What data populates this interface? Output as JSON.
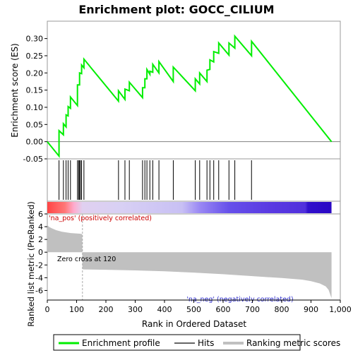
{
  "chart_data": {
    "type": "line",
    "title": "Enrichment plot: GOCC_CILIUM",
    "es_panel": {
      "ylabel": "Enrichment score (ES)",
      "ylim": [
        -0.05,
        0.33
      ],
      "yticks": [
        -0.05,
        0.0,
        0.05,
        0.1,
        0.15,
        0.2,
        0.25,
        0.3
      ],
      "ytick_labels": [
        "-0.05",
        "0.00",
        "0.05",
        "0.10",
        "0.15",
        "0.20",
        "0.25",
        "0.30"
      ],
      "series": [
        {
          "name": "Enrichment profile",
          "color": "#00ee00",
          "x": [
            0,
            40,
            40,
            55,
            55,
            64,
            64,
            71,
            71,
            79,
            79,
            103,
            103,
            110,
            110,
            117,
            117,
            125,
            125,
            243,
            243,
            265,
            265,
            280,
            280,
            325,
            325,
            333,
            333,
            340,
            340,
            350,
            350,
            360,
            360,
            381,
            381,
            430,
            430,
            505,
            505,
            520,
            520,
            545,
            545,
            555,
            555,
            568,
            568,
            585,
            585,
            620,
            620,
            640,
            640,
            697,
            697,
            970
          ],
          "y": [
            0.0,
            -0.042,
            0.032,
            0.02,
            0.052,
            0.043,
            0.078,
            0.075,
            0.102,
            0.097,
            0.13,
            0.105,
            0.165,
            0.165,
            0.2,
            0.198,
            0.223,
            0.215,
            0.24,
            0.118,
            0.148,
            0.123,
            0.153,
            0.148,
            0.173,
            0.128,
            0.157,
            0.157,
            0.183,
            0.183,
            0.21,
            0.196,
            0.205,
            0.202,
            0.225,
            0.2,
            0.233,
            0.175,
            0.217,
            0.148,
            0.183,
            0.168,
            0.2,
            0.175,
            0.208,
            0.21,
            0.238,
            0.232,
            0.262,
            0.257,
            0.287,
            0.252,
            0.287,
            0.272,
            0.307,
            0.25,
            0.292,
            0.0
          ]
        }
      ]
    },
    "hits": {
      "name": "Hits",
      "x": [
        40,
        55,
        64,
        71,
        79,
        103,
        107,
        110,
        113,
        117,
        125,
        243,
        265,
        280,
        325,
        333,
        340,
        350,
        360,
        381,
        430,
        505,
        520,
        545,
        555,
        568,
        585,
        620,
        640,
        697
      ]
    },
    "rank_panel": {
      "ylabel": "Ranked list metric (PreRanked)",
      "xlabel": "Rank in Ordered Dataset",
      "ylim": [
        -7.5,
        6
      ],
      "yticks": [
        -6,
        -4,
        -2,
        0,
        2,
        4,
        6
      ],
      "ytick_labels": [
        "-6",
        "-4",
        "-2",
        "0",
        "2",
        "4",
        "6"
      ],
      "series": [
        {
          "name": "Ranking metric scores",
          "color": "#c0c0c0",
          "x": [
            0,
            5,
            15,
            30,
            50,
            80,
            110,
            119,
            120,
            125,
            200,
            300,
            400,
            500,
            600,
            700,
            800,
            870,
            900,
            930,
            950,
            960,
            967,
            970
          ],
          "y": [
            4.3,
            4.0,
            3.75,
            3.45,
            3.2,
            3.0,
            2.9,
            2.85,
            -2.65,
            -2.7,
            -2.75,
            -2.85,
            -3.0,
            -3.2,
            -3.45,
            -3.75,
            -4.05,
            -4.3,
            -4.55,
            -4.9,
            -5.35,
            -5.9,
            -6.8,
            -7.2
          ]
        }
      ],
      "zero_cross_label": "Zero cross at 120",
      "zero_cross_x": 120,
      "pos_label": "'na_pos' (positively correlated)",
      "neg_label": "'na_neg' (negatively correlated)",
      "pos_color": "#cc0000",
      "neg_color": "#3333cc"
    },
    "xlim": [
      0,
      1000
    ],
    "xticks": [
      0,
      100,
      200,
      300,
      400,
      500,
      600,
      700,
      800,
      900,
      1000
    ],
    "xtick_labels": [
      "0",
      "100",
      "200",
      "300",
      "400",
      "500",
      "600",
      "700",
      "800",
      "900",
      "1,000"
    ],
    "n_genes": 970,
    "heat_stops": [
      {
        "x": 0,
        "color": "#ff4444"
      },
      {
        "x": 60,
        "color": "#ff7777"
      },
      {
        "x": 90,
        "color": "#ffaacc"
      },
      {
        "x": 120,
        "color": "#e0d0f0"
      },
      {
        "x": 250,
        "color": "#d8d0f4"
      },
      {
        "x": 460,
        "color": "#c8c0f4"
      },
      {
        "x": 520,
        "color": "#9a88f4"
      },
      {
        "x": 620,
        "color": "#6650ea"
      },
      {
        "x": 760,
        "color": "#5a3ae2"
      },
      {
        "x": 880,
        "color": "#5030dc"
      },
      {
        "x": 890,
        "color": "#3010cc"
      },
      {
        "x": 970,
        "color": "#2a08c4"
      }
    ],
    "legend": {
      "items": [
        {
          "label": "Enrichment profile",
          "color": "#00ee00"
        },
        {
          "label": "Hits",
          "color": "#000000"
        },
        {
          "label": "Ranking metric scores",
          "color": "#c0c0c0"
        }
      ]
    }
  }
}
